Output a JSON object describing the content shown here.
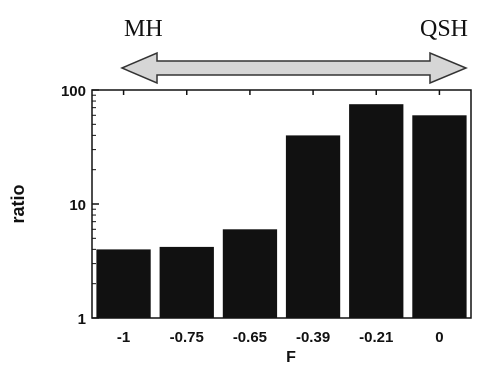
{
  "annotation": {
    "left_label": "MH",
    "right_label": "QSH",
    "arrow_color": "#d6d6d6"
  },
  "chart_data": {
    "type": "bar",
    "categories": [
      "-1",
      "-0.75",
      "-0.65",
      "-0.39",
      "-0.21",
      "0"
    ],
    "values": [
      4,
      4.2,
      6,
      40,
      75,
      60
    ],
    "xlabel": "F",
    "ylabel": "ratio",
    "yscale": "log",
    "ylim": [
      1,
      100
    ],
    "yticks": [
      "1",
      "10",
      "100"
    ],
    "grid": false,
    "bar_color": "#111111"
  }
}
